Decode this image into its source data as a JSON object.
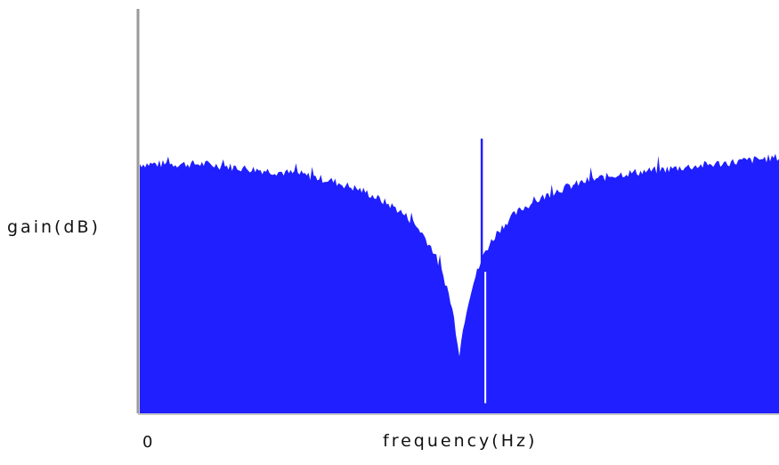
{
  "chart_data": {
    "type": "area",
    "title": "",
    "xlabel": "frequency(Hz)",
    "ylabel": "gain(dB)",
    "x_tick_labels": [
      "0"
    ],
    "grid": false,
    "legend": "none",
    "colors": {
      "fill": "#1f1fff",
      "spike": "#1f1fff",
      "y_axis": "#9a9a9a",
      "x_axis": "#c8c8c8"
    },
    "series": [
      {
        "description_free": true,
        "x": [
          0.0,
          0.05,
          0.1,
          0.15,
          0.2,
          0.25,
          0.3,
          0.35,
          0.4,
          0.42,
          0.44,
          0.46,
          0.48,
          0.49,
          0.5,
          0.51,
          0.52,
          0.54,
          0.56,
          0.58,
          0.6,
          0.65,
          0.7,
          0.75,
          0.8,
          0.85,
          0.9,
          0.95,
          1.0
        ],
        "values": [
          0.74,
          0.74,
          0.74,
          0.73,
          0.72,
          0.71,
          0.69,
          0.66,
          0.61,
          0.58,
          0.54,
          0.48,
          0.38,
          0.3,
          0.18,
          0.3,
          0.38,
          0.48,
          0.54,
          0.58,
          0.61,
          0.66,
          0.69,
          0.71,
          0.72,
          0.73,
          0.74,
          0.75,
          0.76
        ]
      }
    ],
    "spike": {
      "x": 0.535,
      "value": 1.0
    },
    "xlim": [
      0,
      1
    ],
    "ylim": [
      0,
      1.2
    ]
  }
}
